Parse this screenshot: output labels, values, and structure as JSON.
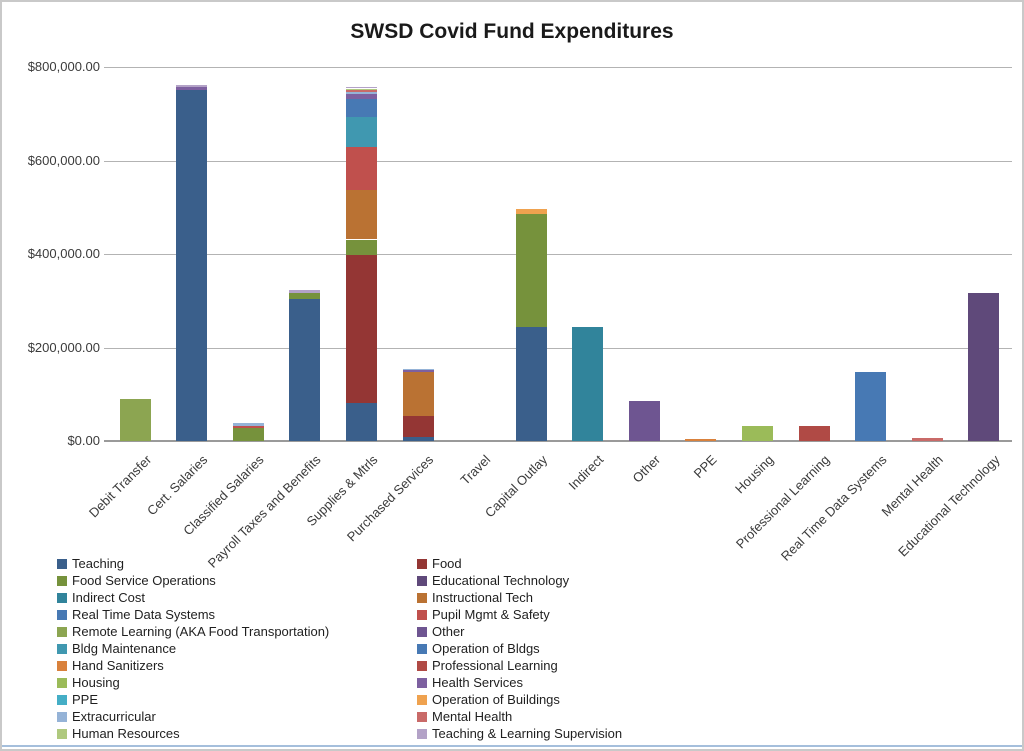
{
  "title": "SWSD Covid Fund Expenditures",
  "chart_data": {
    "type": "bar",
    "stacked": true,
    "title": "SWSD Covid Fund Expenditures",
    "xlabel": "",
    "ylabel": "",
    "ylim": [
      0,
      800000
    ],
    "grid": true,
    "legend_position": "bottom",
    "ytick_labels": [
      "$0.00",
      "$200,000.00",
      "$400,000.00",
      "$600,000.00",
      "$800,000.00"
    ],
    "ytick_values": [
      0,
      200000,
      400000,
      600000,
      800000
    ],
    "categories": [
      "Debit Transfer",
      "Cert. Salaries",
      "Classified Salaries",
      "Payroll Taxes and Benefits",
      "Supplies & Mtrls",
      "Purchased Services",
      "Travel",
      "Capital Outlay",
      "Indirect",
      "Other",
      "PPE",
      "Housing",
      "Professional Learning",
      "Real Time Data Systems",
      "Mental Health",
      "Educational Technology"
    ],
    "series": [
      {
        "name": "Teaching",
        "color": "#3a5f8b",
        "values": [
          0,
          750000,
          0,
          303000,
          82000,
          8000,
          0,
          244000,
          0,
          0,
          0,
          0,
          0,
          0,
          0,
          0
        ]
      },
      {
        "name": "Food",
        "color": "#943634",
        "values": [
          0,
          0,
          0,
          0,
          315000,
          46000,
          0,
          0,
          0,
          0,
          0,
          0,
          0,
          0,
          0,
          0
        ]
      },
      {
        "name": "Food Service Operations",
        "color": "#76923c",
        "values": [
          0,
          0,
          28000,
          13000,
          34000,
          0,
          0,
          242000,
          0,
          0,
          0,
          0,
          0,
          0,
          0,
          0
        ]
      },
      {
        "name": "Educational Technology",
        "color": "#5f497a",
        "values": [
          0,
          0,
          0,
          0,
          0,
          0,
          0,
          0,
          0,
          0,
          0,
          0,
          0,
          0,
          0,
          316000
        ]
      },
      {
        "name": "Indirect Cost",
        "color": "#31849b",
        "values": [
          0,
          0,
          0,
          0,
          0,
          0,
          0,
          0,
          244000,
          0,
          0,
          0,
          0,
          0,
          0,
          0
        ]
      },
      {
        "name": "Instructional Tech",
        "color": "#ba7233",
        "values": [
          0,
          0,
          0,
          0,
          105000,
          93000,
          0,
          0,
          0,
          0,
          0,
          0,
          0,
          0,
          0,
          0
        ]
      },
      {
        "name": "Real Time Data Systems",
        "color": "#4779b4",
        "values": [
          0,
          0,
          0,
          0,
          0,
          0,
          0,
          0,
          0,
          0,
          0,
          0,
          0,
          147000,
          0,
          0
        ]
      },
      {
        "name": "Pupil Mgmt & Safety",
        "color": "#c0504d",
        "values": [
          0,
          0,
          5000,
          0,
          92000,
          0,
          0,
          0,
          0,
          0,
          0,
          0,
          0,
          0,
          0,
          0
        ]
      },
      {
        "name": "Remote Learning (AKA Food Transportation)",
        "color": "#8ca551",
        "values": [
          90000,
          0,
          0,
          0,
          0,
          0,
          0,
          0,
          0,
          0,
          0,
          0,
          0,
          0,
          0,
          0
        ]
      },
      {
        "name": "Other",
        "color": "#6e5591",
        "values": [
          0,
          0,
          0,
          0,
          0,
          0,
          0,
          0,
          0,
          86000,
          0,
          0,
          0,
          0,
          0,
          0
        ]
      },
      {
        "name": "Bldg Maintenance",
        "color": "#4098b0",
        "values": [
          0,
          0,
          0,
          0,
          65000,
          0,
          0,
          0,
          0,
          0,
          0,
          0,
          0,
          0,
          0,
          0
        ]
      },
      {
        "name": "Operation of Bldgs",
        "color": "#4779b4",
        "values": [
          0,
          0,
          0,
          0,
          38000,
          0,
          0,
          0,
          0,
          0,
          0,
          0,
          0,
          0,
          0,
          0
        ]
      },
      {
        "name": "Hand Sanitizers",
        "color": "#d9813c",
        "values": [
          0,
          0,
          0,
          0,
          0,
          0,
          0,
          0,
          0,
          0,
          5000,
          0,
          0,
          0,
          0,
          0
        ]
      },
      {
        "name": "Professional Learning",
        "color": "#b04a45",
        "values": [
          0,
          0,
          0,
          0,
          0,
          0,
          0,
          0,
          0,
          0,
          0,
          0,
          33000,
          0,
          0,
          0
        ]
      },
      {
        "name": "Housing",
        "color": "#9bbb59",
        "values": [
          0,
          0,
          0,
          0,
          0,
          0,
          0,
          0,
          0,
          0,
          0,
          33000,
          0,
          0,
          0,
          0
        ]
      },
      {
        "name": "Health Services",
        "color": "#7d60a0",
        "values": [
          0,
          8000,
          0,
          0,
          11000,
          4000,
          0,
          0,
          0,
          0,
          0,
          0,
          0,
          0,
          0,
          0
        ]
      },
      {
        "name": "PPE",
        "color": "#45aec6",
        "values": [
          0,
          0,
          0,
          0,
          0,
          0,
          0,
          0,
          0,
          0,
          0,
          0,
          0,
          0,
          0,
          0
        ]
      },
      {
        "name": "Operation of Buildings",
        "color": "#efa24f",
        "values": [
          0,
          0,
          0,
          0,
          0,
          0,
          0,
          11000,
          0,
          0,
          0,
          0,
          0,
          0,
          0,
          0
        ]
      },
      {
        "name": "Extracurricular",
        "color": "#95b3d7",
        "values": [
          0,
          0,
          5000,
          0,
          4000,
          4000,
          0,
          0,
          0,
          0,
          0,
          0,
          0,
          0,
          0,
          0
        ]
      },
      {
        "name": "Mental Health",
        "color": "#c96a68",
        "values": [
          0,
          0,
          0,
          0,
          4000,
          0,
          0,
          0,
          0,
          0,
          0,
          0,
          0,
          0,
          6000,
          0
        ]
      },
      {
        "name": "Human Resources",
        "color": "#afc97e",
        "values": [
          0,
          0,
          0,
          0,
          4000,
          0,
          0,
          0,
          0,
          0,
          0,
          0,
          0,
          0,
          0,
          0
        ]
      },
      {
        "name": "Teaching & Learning Supervision",
        "color": "#b3a2c7",
        "values": [
          0,
          4000,
          0,
          6000,
          4000,
          0,
          0,
          0,
          0,
          0,
          0,
          0,
          0,
          0,
          0,
          0
        ]
      }
    ]
  }
}
